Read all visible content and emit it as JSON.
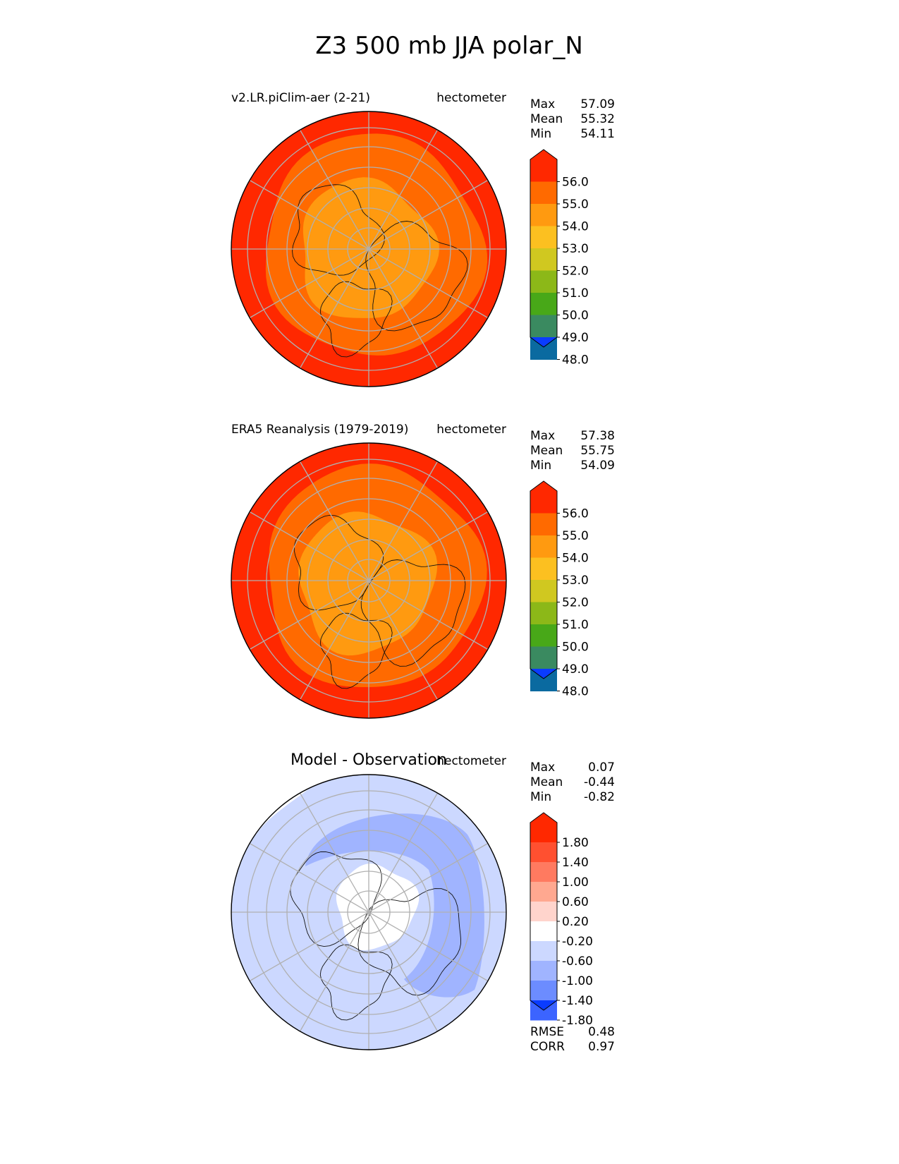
{
  "title": "Z3 500 mb JJA polar_N",
  "chart_data": [
    {
      "type": "heatmap",
      "projection": "north polar stereographic",
      "left_label": "v2.LR.piClim-aer (2-21)",
      "units": "hectometer",
      "stats": [
        {
          "label": "Max",
          "value": "57.09"
        },
        {
          "label": "Mean",
          "value": "55.32"
        },
        {
          "label": "Min",
          "value": "54.11"
        }
      ],
      "colorbar": {
        "ticks": [
          "56.0",
          "55.0",
          "54.0",
          "53.0",
          "52.0",
          "51.0",
          "50.0",
          "49.0",
          "48.0"
        ],
        "colors": [
          "#ff2800",
          "#ff6a00",
          "#ff9a10",
          "#fcc020",
          "#d0c820",
          "#8cb818",
          "#48a818",
          "#3a8a60",
          "#0a6aa0",
          "#0a3cff"
        ],
        "extend": "both"
      },
      "field_levels": [
        {
          "range": "outer",
          "value": 56.5
        },
        {
          "range": "middle",
          "value": 55.5
        },
        {
          "range": "inner",
          "value": 54.5
        }
      ],
      "grid": true
    },
    {
      "type": "heatmap",
      "projection": "north polar stereographic",
      "left_label": "ERA5 Reanalysis (1979-2019)",
      "units": "hectometer",
      "stats": [
        {
          "label": "Max",
          "value": "57.38"
        },
        {
          "label": "Mean",
          "value": "55.75"
        },
        {
          "label": "Min",
          "value": "54.09"
        }
      ],
      "colorbar": {
        "ticks": [
          "56.0",
          "55.0",
          "54.0",
          "53.0",
          "52.0",
          "51.0",
          "50.0",
          "49.0",
          "48.0"
        ],
        "colors": [
          "#ff2800",
          "#ff6a00",
          "#ff9a10",
          "#fcc020",
          "#d0c820",
          "#8cb818",
          "#48a818",
          "#3a8a60",
          "#0a6aa0",
          "#0a3cff"
        ],
        "extend": "both"
      },
      "field_levels": [
        {
          "range": "outer",
          "value": 56.5
        },
        {
          "range": "middle",
          "value": 55.5
        },
        {
          "range": "inner",
          "value": 54.5
        }
      ],
      "grid": true
    },
    {
      "type": "heatmap",
      "projection": "north polar stereographic",
      "left_label": "Model - Observation",
      "units": "hectometer",
      "stats": [
        {
          "label": "Max",
          "value": "0.07"
        },
        {
          "label": "Mean",
          "value": "-0.44"
        },
        {
          "label": "Min",
          "value": "-0.82"
        }
      ],
      "colorbar": {
        "ticks": [
          "1.80",
          "1.40",
          "1.00",
          "0.60",
          "0.20",
          "-0.20",
          "-0.60",
          "-1.00",
          "-1.40",
          "-1.80"
        ],
        "colors": [
          "#ff2800",
          "#ff5030",
          "#ff7a60",
          "#ffa890",
          "#ffd4cc",
          "#ffffff",
          "#ccd8ff",
          "#a0b4ff",
          "#6c8cff",
          "#3c64ff",
          "#0a3cff"
        ],
        "extend": "both"
      },
      "footer_stats": [
        {
          "label": "RMSE",
          "value": "0.48"
        },
        {
          "label": "CORR",
          "value": "0.97"
        }
      ],
      "field_levels": [
        {
          "range": "outer",
          "value": -0.4
        },
        {
          "range": "band",
          "value": -0.8
        },
        {
          "range": "pole",
          "value": 0.0
        }
      ],
      "grid": true
    }
  ]
}
